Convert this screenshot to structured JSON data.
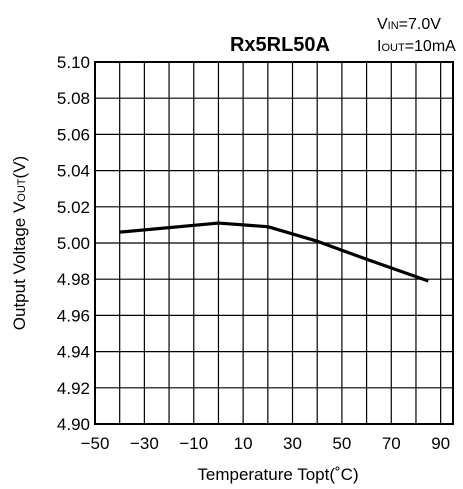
{
  "chart_data": {
    "type": "line",
    "title": "Rx5RL50A",
    "conditions": {
      "vin_main": "V",
      "vin_sub": "IN",
      "vin_value": "=7.0V",
      "iout_main": "I",
      "iout_sub": "OUT",
      "iout_value": "=10mA"
    },
    "xlabel": "Temperature Topt(˚C)",
    "ylabel_main": "Output Voltage V",
    "ylabel_sub": "OUT",
    "ylabel_unit": "(V)",
    "xlim": [
      -50,
      95
    ],
    "ylim": [
      4.9,
      5.1
    ],
    "x_ticks": [
      -50,
      -30,
      -10,
      10,
      30,
      50,
      70,
      90
    ],
    "x_tick_labels": [
      "−50",
      "−30",
      "−10",
      "10",
      "30",
      "50",
      "70",
      "90"
    ],
    "y_ticks": [
      4.9,
      4.92,
      4.94,
      4.96,
      4.98,
      5.0,
      5.02,
      5.04,
      5.06,
      5.08,
      5.1
    ],
    "y_tick_labels": [
      "4.90",
      "4.92",
      "4.94",
      "4.96",
      "4.98",
      "5.00",
      "5.02",
      "5.04",
      "5.06",
      "5.08",
      "5.10"
    ],
    "grid": true,
    "grid_step_x": 10,
    "grid_step_y": 0.02,
    "series": [
      {
        "x": [
          -40,
          0,
          20,
          40,
          60,
          85
        ],
        "y": [
          5.006,
          5.011,
          5.009,
          5.001,
          4.991,
          4.979
        ]
      }
    ],
    "colors": {
      "line": "#000000",
      "grid": "#000000"
    }
  }
}
